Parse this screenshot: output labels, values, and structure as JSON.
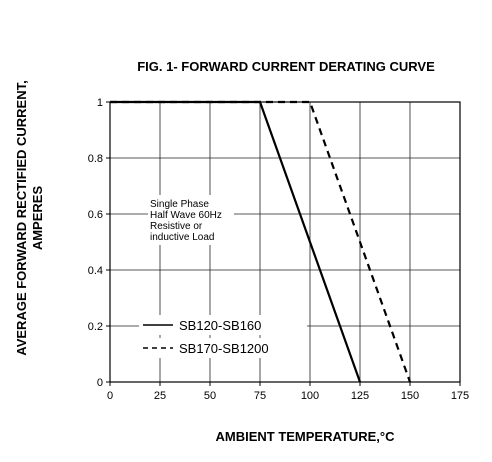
{
  "chart_data": {
    "type": "line",
    "title": "FIG. 1- FORWARD CURRENT DERATING CURVE",
    "xlabel": "AMBIENT TEMPERATURE,°C",
    "ylabel_line1": "AVERAGE FORWARD RECTIFIED CURRENT,",
    "ylabel_line2": "AMPERES",
    "xlim": [
      0,
      175
    ],
    "ylim": [
      0,
      1
    ],
    "xticks": [
      0,
      25,
      50,
      75,
      100,
      125,
      150,
      175
    ],
    "yticks": [
      0,
      0.2,
      0.4,
      0.6,
      0.8,
      1
    ],
    "xtick_labels": [
      "0",
      "25",
      "50",
      "75",
      "100",
      "125",
      "150",
      "175"
    ],
    "ytick_labels": [
      "0",
      "0.2",
      "0.4",
      "0.6",
      "0.8",
      "1"
    ],
    "grid": true,
    "annotation": [
      "Single Phase",
      "Half Wave 60Hz",
      "Resistive or",
      "inductive Load"
    ],
    "series": [
      {
        "name": "SB120-SB160",
        "style": "solid",
        "x": [
          0,
          75,
          125
        ],
        "y": [
          1,
          1,
          0
        ]
      },
      {
        "name": "SB170-SB1200",
        "style": "dashed",
        "x": [
          0,
          100,
          150
        ],
        "y": [
          1,
          1,
          0
        ]
      }
    ]
  }
}
